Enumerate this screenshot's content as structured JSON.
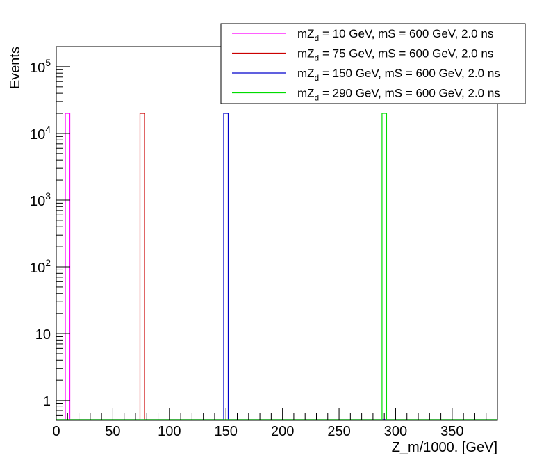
{
  "chart_data": {
    "type": "histogram",
    "xlabel": "Z_m/1000. [GeV]",
    "ylabel": "Events",
    "xlim": [
      0,
      390
    ],
    "ylim": [
      0.5,
      200000
    ],
    "yscale": "log",
    "bin_width": 4,
    "grid": false,
    "legend_position": "top-right",
    "x_ticks": [
      0,
      50,
      100,
      150,
      200,
      250,
      300,
      350
    ],
    "x_tick_labels": [
      "0",
      "50",
      "100",
      "150",
      "200",
      "250",
      "300",
      "350"
    ],
    "y_ticks": [
      {
        "value": 1,
        "base": "1",
        "exp": ""
      },
      {
        "value": 10,
        "base": "10",
        "exp": ""
      },
      {
        "value": 100,
        "base": "10",
        "exp": "2"
      },
      {
        "value": 1000,
        "base": "10",
        "exp": "3"
      },
      {
        "value": 10000,
        "base": "10",
        "exp": "4"
      },
      {
        "value": 100000,
        "base": "10",
        "exp": "5"
      }
    ],
    "series": [
      {
        "label_pre": "mZ",
        "label_sub": "d",
        "label_post": " = 10 GeV, mS = 600 GeV, 2.0 ns",
        "color": "#ff00ff",
        "bin_low": 8,
        "bin_high": 12,
        "value": 20000
      },
      {
        "label_pre": "mZ",
        "label_sub": "d",
        "label_post": " = 75 GeV, mS = 600 GeV, 2.0 ns",
        "color": "#cc0000",
        "bin_low": 74,
        "bin_high": 78,
        "value": 20000
      },
      {
        "label_pre": "mZ",
        "label_sub": "d",
        "label_post": " = 150 GeV, mS = 600 GeV, 2.0 ns",
        "color": "#0000cc",
        "bin_low": 148,
        "bin_high": 152,
        "value": 20000
      },
      {
        "label_pre": "mZ",
        "label_sub": "d",
        "label_post": " = 290 GeV, mS = 600 GeV, 2.0 ns",
        "color": "#00dd00",
        "bin_low": 288,
        "bin_high": 292,
        "value": 20000
      }
    ]
  }
}
